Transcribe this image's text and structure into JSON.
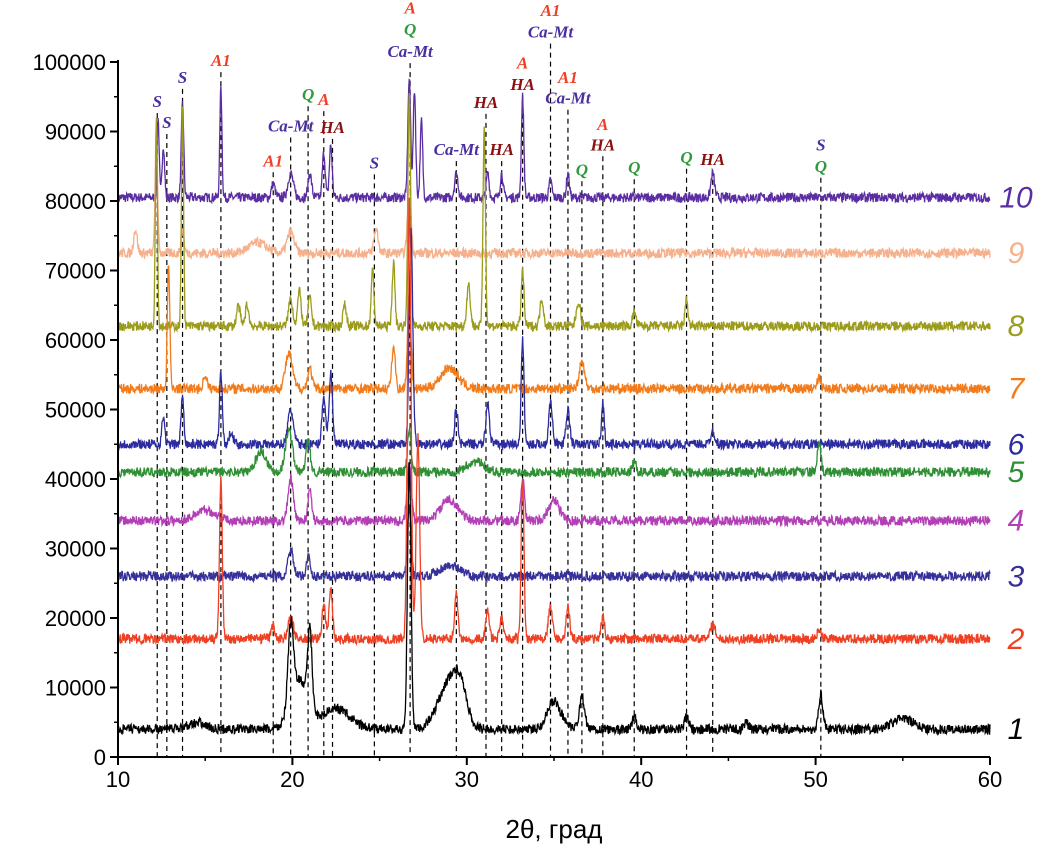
{
  "chart_data": {
    "type": "line",
    "title": "",
    "xlabel": "2θ, град",
    "ylabel": "",
    "xlim": [
      10,
      60
    ],
    "ylim": [
      0,
      100000
    ],
    "xticks": [
      10,
      20,
      30,
      40,
      50,
      60
    ],
    "yticks": [
      0,
      10000,
      20000,
      30000,
      40000,
      50000,
      60000,
      70000,
      80000,
      90000,
      100000
    ],
    "grid": false,
    "legend": "none; series numbers printed at right end of each curve",
    "series": [
      {
        "name": "1",
        "color": "#000000",
        "baseline": 4000,
        "peaks": [
          [
            14.5,
            5000,
            0.5
          ],
          [
            19.9,
            15500,
            0.15
          ],
          [
            20.4,
            11000,
            0.5
          ],
          [
            21.0,
            15000,
            0.12
          ],
          [
            22.5,
            7000,
            0.8
          ],
          [
            26.7,
            42000,
            0.1
          ],
          [
            28.9,
            10000,
            0.6
          ],
          [
            29.6,
            9000,
            0.4
          ],
          [
            35.0,
            8000,
            0.4
          ],
          [
            36.6,
            8500,
            0.15
          ],
          [
            39.6,
            5800,
            0.12
          ],
          [
            42.6,
            5800,
            0.12
          ],
          [
            46.0,
            5000,
            0.12
          ],
          [
            50.3,
            9000,
            0.12
          ],
          [
            55.0,
            5500,
            0.6
          ]
        ]
      },
      {
        "name": "2",
        "color": "#ef4023",
        "baseline": 17000,
        "peaks": [
          [
            15.9,
            40000,
            0.08
          ],
          [
            18.9,
            19000,
            0.1
          ],
          [
            19.9,
            20000,
            0.15
          ],
          [
            21.8,
            22000,
            0.1
          ],
          [
            22.2,
            24000,
            0.1
          ],
          [
            26.7,
            80000,
            0.1
          ],
          [
            27.2,
            46000,
            0.1
          ],
          [
            29.4,
            23500,
            0.1
          ],
          [
            31.2,
            21000,
            0.1
          ],
          [
            32.0,
            20000,
            0.1
          ],
          [
            33.2,
            40000,
            0.08
          ],
          [
            34.8,
            21500,
            0.12
          ],
          [
            35.8,
            21500,
            0.1
          ],
          [
            37.8,
            20000,
            0.1
          ],
          [
            44.1,
            19000,
            0.15
          ],
          [
            50.2,
            18500,
            0.1
          ]
        ]
      },
      {
        "name": "3",
        "color": "#36309a",
        "baseline": 26000,
        "peaks": [
          [
            19.9,
            30000,
            0.15
          ],
          [
            20.9,
            29000,
            0.1
          ],
          [
            26.7,
            36000,
            0.1
          ],
          [
            29.0,
            27500,
            0.6
          ]
        ]
      },
      {
        "name": "4",
        "color": "#b23fb5",
        "baseline": 34000,
        "peaks": [
          [
            15.0,
            35500,
            0.6
          ],
          [
            19.9,
            40000,
            0.15
          ],
          [
            21.0,
            39000,
            0.1
          ],
          [
            26.7,
            42000,
            0.12
          ],
          [
            29.0,
            37000,
            0.5
          ],
          [
            33.2,
            40000,
            0.1
          ],
          [
            35.0,
            37000,
            0.3
          ]
        ]
      },
      {
        "name": "5",
        "color": "#2f8f34",
        "baseline": 41000,
        "peaks": [
          [
            18.2,
            44000,
            0.3
          ],
          [
            19.8,
            47000,
            0.2
          ],
          [
            20.9,
            45500,
            0.12
          ],
          [
            26.7,
            47000,
            0.1
          ],
          [
            30.5,
            42500,
            0.5
          ],
          [
            39.6,
            42500,
            0.1
          ],
          [
            50.2,
            45000,
            0.1
          ]
        ]
      },
      {
        "name": "6",
        "color": "#2c2ca0",
        "baseline": 45000,
        "peaks": [
          [
            12.6,
            49000,
            0.08
          ],
          [
            13.7,
            52000,
            0.08
          ],
          [
            15.9,
            55500,
            0.08
          ],
          [
            16.5,
            47000,
            0.1
          ],
          [
            19.9,
            50000,
            0.15
          ],
          [
            21.8,
            52000,
            0.1
          ],
          [
            22.2,
            55000,
            0.1
          ],
          [
            26.8,
            76000,
            0.1
          ],
          [
            29.4,
            50000,
            0.1
          ],
          [
            31.2,
            51000,
            0.1
          ],
          [
            33.2,
            60000,
            0.08
          ],
          [
            34.8,
            51500,
            0.1
          ],
          [
            35.8,
            50000,
            0.1
          ],
          [
            37.8,
            51000,
            0.08
          ],
          [
            44.1,
            47000,
            0.12
          ]
        ]
      },
      {
        "name": "7",
        "color": "#f27c1b",
        "baseline": 53000,
        "peaks": [
          [
            12.9,
            71000,
            0.07
          ],
          [
            15.0,
            55000,
            0.1
          ],
          [
            19.8,
            58000,
            0.2
          ],
          [
            21.0,
            56000,
            0.12
          ],
          [
            25.8,
            59000,
            0.1
          ],
          [
            26.7,
            66000,
            0.1
          ],
          [
            29.0,
            56000,
            0.5
          ],
          [
            36.6,
            57000,
            0.15
          ],
          [
            50.2,
            54500,
            0.1
          ]
        ]
      },
      {
        "name": "8",
        "color": "#9c9c1c",
        "baseline": 62000,
        "peaks": [
          [
            12.2,
            92000,
            0.06
          ],
          [
            13.7,
            94000,
            0.06
          ],
          [
            16.9,
            65000,
            0.1
          ],
          [
            17.4,
            65000,
            0.1
          ],
          [
            19.9,
            66000,
            0.12
          ],
          [
            20.4,
            67000,
            0.1
          ],
          [
            21.0,
            66000,
            0.1
          ],
          [
            23.0,
            65000,
            0.1
          ],
          [
            24.6,
            70000,
            0.08
          ],
          [
            25.8,
            71000,
            0.08
          ],
          [
            26.7,
            95000,
            0.08
          ],
          [
            30.1,
            68000,
            0.1
          ],
          [
            31.0,
            91000,
            0.07
          ],
          [
            33.2,
            70000,
            0.08
          ],
          [
            34.3,
            66000,
            0.1
          ],
          [
            36.4,
            65500,
            0.12
          ],
          [
            39.6,
            64000,
            0.1
          ],
          [
            42.6,
            66000,
            0.08
          ]
        ]
      },
      {
        "name": "9",
        "color": "#f6b08b",
        "baseline": 72500,
        "peaks": [
          [
            11.0,
            76000,
            0.1
          ],
          [
            12.2,
            90000,
            0.07
          ],
          [
            13.7,
            76000,
            0.08
          ],
          [
            18.0,
            74000,
            0.5
          ],
          [
            19.9,
            75500,
            0.2
          ],
          [
            24.8,
            76000,
            0.12
          ],
          [
            26.7,
            82000,
            0.1
          ]
        ]
      },
      {
        "name": "10",
        "color": "#5a2ea2",
        "baseline": 80500,
        "peaks": [
          [
            12.3,
            92000,
            0.06
          ],
          [
            12.6,
            88000,
            0.07
          ],
          [
            13.7,
            94000,
            0.07
          ],
          [
            15.9,
            96500,
            0.06
          ],
          [
            18.9,
            82500,
            0.1
          ],
          [
            19.9,
            84000,
            0.15
          ],
          [
            21.0,
            84000,
            0.1
          ],
          [
            21.8,
            87000,
            0.08
          ],
          [
            22.2,
            88000,
            0.08
          ],
          [
            26.7,
            97500,
            0.08
          ],
          [
            27.0,
            96000,
            0.07
          ],
          [
            27.4,
            91500,
            0.07
          ],
          [
            29.4,
            84000,
            0.1
          ],
          [
            31.2,
            84000,
            0.08
          ],
          [
            32.0,
            84000,
            0.08
          ],
          [
            33.2,
            95000,
            0.07
          ],
          [
            34.8,
            83000,
            0.08
          ],
          [
            35.8,
            84000,
            0.08
          ],
          [
            44.1,
            84000,
            0.1
          ]
        ]
      }
    ],
    "annotations": [
      {
        "x": 12.25,
        "labels": [
          {
            "text": "S",
            "color": "#4a2fa0",
            "y": 93500
          }
        ]
      },
      {
        "x": 12.8,
        "labels": [
          {
            "text": "S",
            "color": "#4a2fa0",
            "y": 90500
          }
        ]
      },
      {
        "x": 13.7,
        "labels": [
          {
            "text": "S",
            "color": "#4a2fa0",
            "y": 97000
          }
        ]
      },
      {
        "x": 15.9,
        "labels": [
          {
            "text": "A1",
            "color": "#ef4023",
            "y": 99400
          }
        ]
      },
      {
        "x": 18.9,
        "labels": [
          {
            "text": "A1",
            "color": "#ef4023",
            "y": 85000
          }
        ]
      },
      {
        "x": 19.9,
        "labels": [
          {
            "text": "Ca-Mt",
            "color": "#4a2fa0",
            "y": 90000
          }
        ]
      },
      {
        "x": 20.9,
        "labels": [
          {
            "text": "Q",
            "color": "#2f9a3e",
            "y": 94500
          }
        ]
      },
      {
        "x": 21.8,
        "labels": [
          {
            "text": "A",
            "color": "#ef4023",
            "y": 93800
          }
        ]
      },
      {
        "x": 22.3,
        "labels": [
          {
            "text": "HA",
            "color": "#8b1010",
            "y": 89800
          }
        ]
      },
      {
        "x": 24.7,
        "labels": [
          {
            "text": "S",
            "color": "#4a2fa0",
            "y": 84700
          }
        ]
      },
      {
        "x": 26.75,
        "labels": [
          {
            "text": "A",
            "color": "#ef4023",
            "y": 107000
          },
          {
            "text": "Q",
            "color": "#2f9a3e",
            "y": 103900
          },
          {
            "text": "Ca-Mt",
            "color": "#4a2fa0",
            "y": 100700
          }
        ]
      },
      {
        "x": 29.4,
        "labels": [
          {
            "text": "Ca-Mt",
            "color": "#4a2fa0",
            "y": 86600
          }
        ]
      },
      {
        "x": 31.1,
        "labels": [
          {
            "text": "HA",
            "color": "#8b1010",
            "y": 93400
          }
        ]
      },
      {
        "x": 32.0,
        "labels": [
          {
            "text": "HA",
            "color": "#8b1010",
            "y": 86600
          }
        ]
      },
      {
        "x": 33.2,
        "labels": [
          {
            "text": "A",
            "color": "#ef4023",
            "y": 99100
          },
          {
            "text": "HA",
            "color": "#8b1010",
            "y": 96000
          }
        ]
      },
      {
        "x": 34.8,
        "labels": [
          {
            "text": "A1",
            "color": "#ef4023",
            "y": 106600
          },
          {
            "text": "Ca-Mt",
            "color": "#4a2fa0",
            "y": 103500
          }
        ]
      },
      {
        "x": 35.8,
        "labels": [
          {
            "text": "A1",
            "color": "#ef4023",
            "y": 97000
          },
          {
            "text": "Ca-Mt",
            "color": "#4a2fa0",
            "y": 94000
          }
        ]
      },
      {
        "x": 36.6,
        "labels": [
          {
            "text": "Q",
            "color": "#2f9a3e",
            "y": 83700
          }
        ]
      },
      {
        "x": 37.8,
        "labels": [
          {
            "text": "A",
            "color": "#ef4023",
            "y": 90200
          },
          {
            "text": "HA",
            "color": "#8b1010",
            "y": 87300
          }
        ]
      },
      {
        "x": 39.6,
        "labels": [
          {
            "text": "Q",
            "color": "#2f9a3e",
            "y": 84000
          }
        ]
      },
      {
        "x": 42.6,
        "labels": [
          {
            "text": "Q",
            "color": "#2f9a3e",
            "y": 85500
          }
        ]
      },
      {
        "x": 44.1,
        "labels": [
          {
            "text": "HA",
            "color": "#8b1010",
            "y": 85200
          }
        ]
      },
      {
        "x": 50.3,
        "labels": [
          {
            "text": "S",
            "color": "#4a2fa0",
            "y": 87300
          },
          {
            "text": "Q",
            "color": "#2f9a3e",
            "y": 84200
          }
        ]
      }
    ]
  }
}
